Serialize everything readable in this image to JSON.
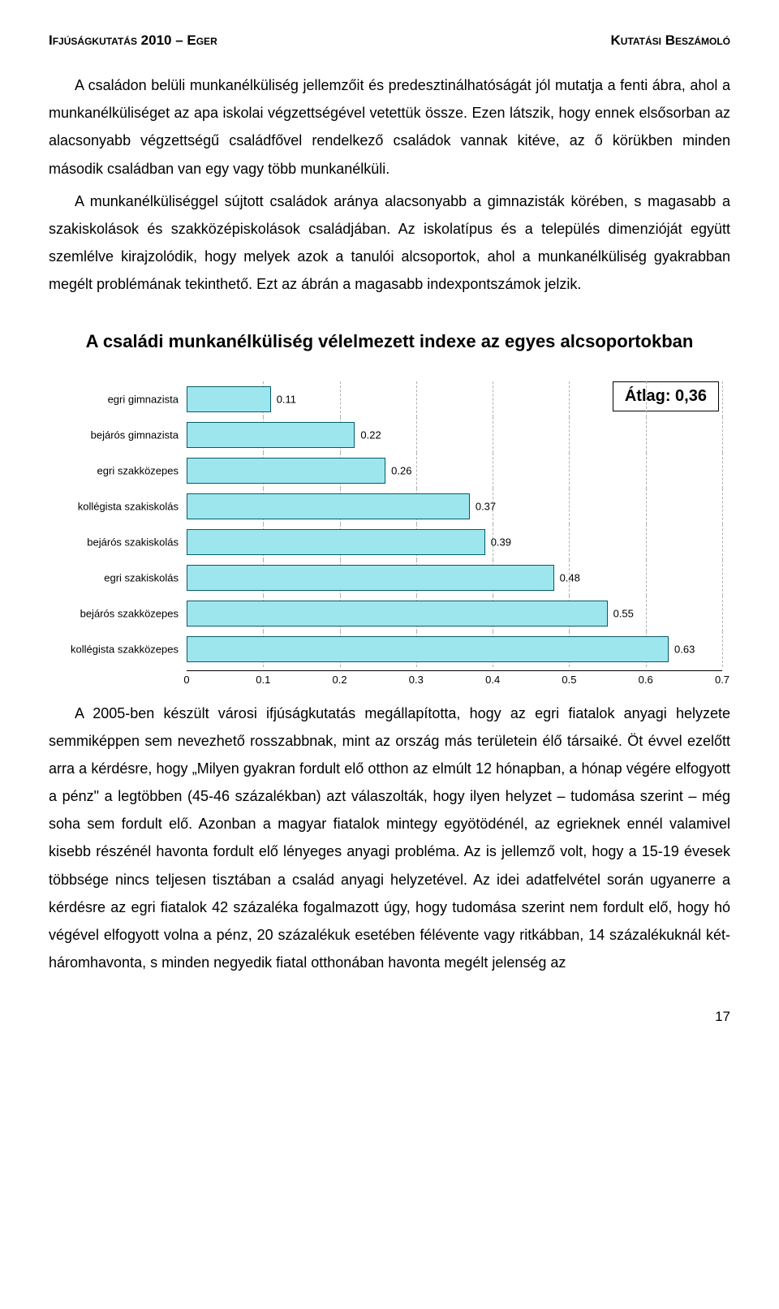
{
  "header": {
    "left": "Ifjúságkutatás 2010 – Eger",
    "right": "Kutatási Beszámoló"
  },
  "para1": "A családon belüli munkanélküliség jellemzőit és predesztinálhatóságát jól mutatja a fenti ábra, ahol a munkanélküliséget az apa iskolai végzettségével vetettük össze. Ezen látszik, hogy ennek elsősorban az alacsonyabb végzettségű családfővel rendelkező családok vannak kitéve, az ő körükben minden második családban van egy vagy több munkanélküli.",
  "para2": "A munkanélküliséggel sújtott családok aránya alacsonyabb a gimnazisták körében, s magasabb a szakiskolások és szakközépiskolások családjában. Az iskolatípus és a település dimenzióját együtt szemlélve kirajzolódik, hogy melyek azok a tanulói alcsoportok, ahol a munkanélküliség gyakrabban megélt problémának tekinthető. Ezt az ábrán a magasabb indexpontszámok jelzik.",
  "chart": {
    "title": "A családi munkanélküliség vélelmezett indexe az egyes alcsoportokban",
    "avg_label": "Átlag: 0,36",
    "xmin": 0,
    "xmax": 0.7,
    "xtick_step": 0.1,
    "ticks": [
      "0",
      "0.1",
      "0.2",
      "0.3",
      "0.4",
      "0.5",
      "0.6",
      "0.7"
    ],
    "bar_color": "#9ee6ee",
    "bar_border": "#045a6a",
    "grid_color": "#b0b0b0",
    "bars": [
      {
        "label": "egri gimnazista",
        "value": 0.11,
        "display": "0.11"
      },
      {
        "label": "bejárós gimnazista",
        "value": 0.22,
        "display": "0.22"
      },
      {
        "label": "egri szakközepes",
        "value": 0.26,
        "display": "0.26"
      },
      {
        "label": "kollégista szakiskolás",
        "value": 0.37,
        "display": "0.37"
      },
      {
        "label": "bejárós szakiskolás",
        "value": 0.39,
        "display": "0.39"
      },
      {
        "label": "egri szakiskolás",
        "value": 0.48,
        "display": "0.48"
      },
      {
        "label": "bejárós szakközepes",
        "value": 0.55,
        "display": "0.55"
      },
      {
        "label": "kollégista szakközepes",
        "value": 0.63,
        "display": "0.63"
      }
    ]
  },
  "para3": "A 2005-ben készült városi ifjúságkutatás megállapította, hogy az egri fiatalok anyagi helyzete semmiképpen sem nevezhető rosszabbnak, mint az ország más területein élő társaiké. Öt évvel ezelőtt arra a kérdésre, hogy „Milyen gyakran fordult elő otthon az elmúlt 12 hónapban, a hónap végére elfogyott a pénz\" a legtöbben (45-46 százalékban) azt válaszolták, hogy ilyen helyzet – tudomása szerint – még soha sem fordult elő. Azonban a magyar fiatalok mintegy egyötödénél, az egrieknek ennél valamivel kisebb részénél havonta fordult elő lényeges anyagi probléma. Az is jellemző volt, hogy a 15-19 évesek többsége nincs teljesen tisztában a család anyagi helyzetével. Az idei adatfelvétel során ugyanerre a kérdésre az egri fiatalok 42 százaléka fogalmazott úgy, hogy tudomása szerint nem fordult elő, hogy hó végével elfogyott volna a pénz, 20 százalékuk esetében félévente vagy ritkábban, 14 százalékuknál két-háromhavonta, s minden negyedik fiatal otthonában havonta megélt jelenség az",
  "page_number": "17"
}
